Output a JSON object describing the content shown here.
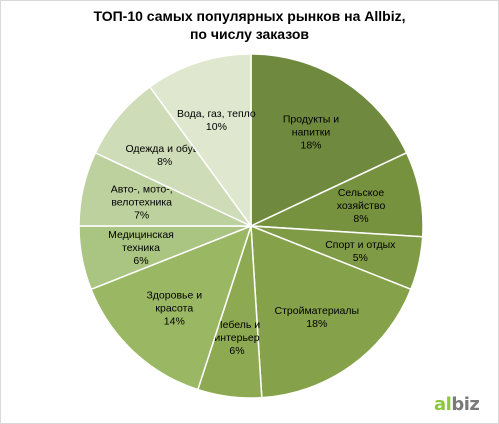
{
  "chart_data": {
    "type": "pie",
    "title": [
      "ТОП-10 самых популярных рынков на Allbiz,",
      "по числу заказов"
    ],
    "slices": [
      {
        "label": [
          "Продукты и",
          "напитки"
        ],
        "value": 18,
        "value_label": "18%",
        "color": "#6f8a3e"
      },
      {
        "label": [
          "Сельское",
          "хозяйство"
        ],
        "value": 8,
        "value_label": "8%",
        "color": "#77923f"
      },
      {
        "label": [
          "Спорт и отдых"
        ],
        "value": 5,
        "value_label": "5%",
        "color": "#7f9b45"
      },
      {
        "label": [
          "Стройматериалы"
        ],
        "value": 18,
        "value_label": "18%",
        "color": "#85a24a"
      },
      {
        "label": [
          "Мебель и",
          "интерьер"
        ],
        "value": 6,
        "value_label": "6%",
        "color": "#8daa52"
      },
      {
        "label": [
          "Здоровье и",
          "красота"
        ],
        "value": 14,
        "value_label": "14%",
        "color": "#9ab864"
      },
      {
        "label": [
          "Медицинская",
          "техника"
        ],
        "value": 6,
        "value_label": "6%",
        "color": "#aac582"
      },
      {
        "label": [
          "Авто-, мото-,",
          "велотехника"
        ],
        "value": 7,
        "value_label": "7%",
        "color": "#bdd19f"
      },
      {
        "label": [
          "Одежда и обувь"
        ],
        "value": 8,
        "value_label": "8%",
        "color": "#cfdcb8"
      },
      {
        "label": [
          "Вода, газ, тепло"
        ],
        "value": 10,
        "value_label": "10%",
        "color": "#dfe7cf"
      }
    ],
    "start_angle_deg": 0,
    "direction": "clockwise",
    "legend": "none"
  },
  "logo": {
    "part1": "al",
    "part2": "biz"
  }
}
